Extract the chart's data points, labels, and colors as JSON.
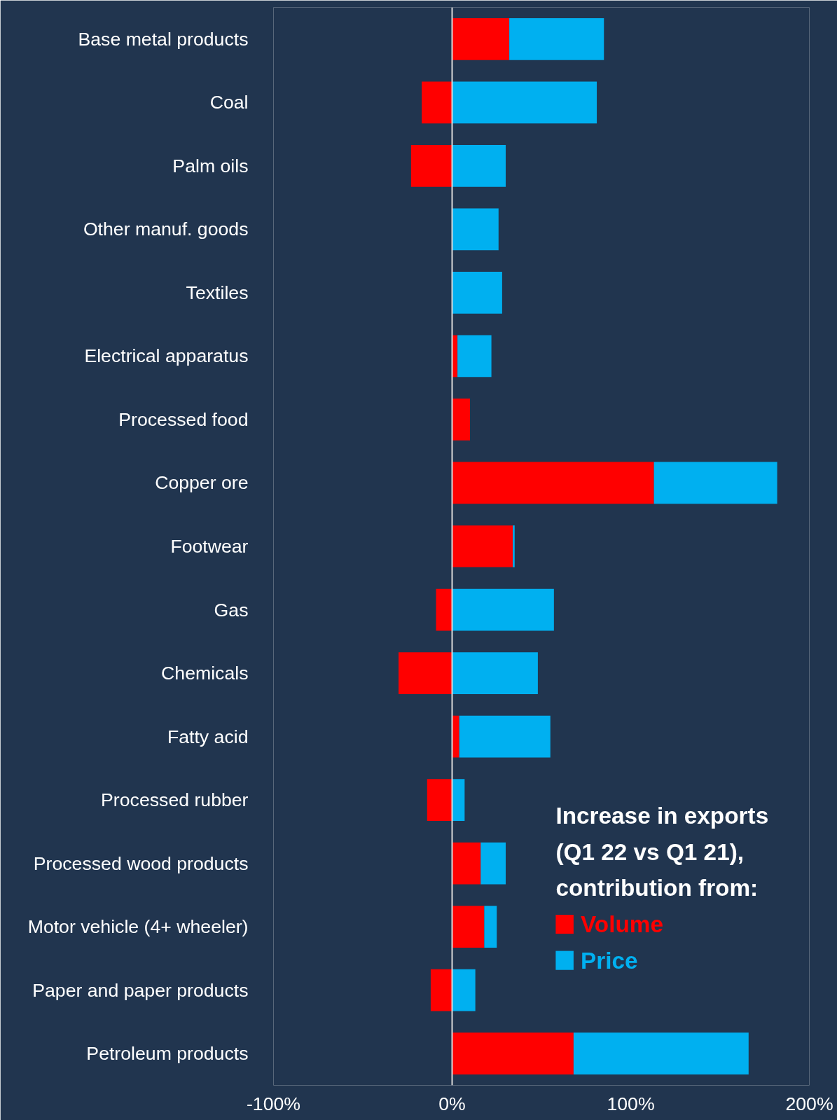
{
  "chart_data": {
    "type": "bar",
    "orientation": "horizontal",
    "stacked": true,
    "categories": [
      "Base metal products",
      "Coal",
      "Palm oils",
      "Other manuf. goods",
      "Textiles",
      "Electrical apparatus",
      "Processed food",
      "Copper ore",
      "Footwear",
      "Gas",
      "Chemicals",
      "Fatty acid",
      "Processed rubber",
      "Processed wood products",
      "Motor vehicle (4+ wheeler)",
      "Paper and paper products",
      "Petroleum products"
    ],
    "series": [
      {
        "name": "Volume",
        "color": "#ff0000",
        "values": [
          32,
          -17,
          -23,
          0,
          0,
          3,
          10,
          113,
          34,
          -9,
          -30,
          4,
          -14,
          16,
          18,
          -12,
          68
        ]
      },
      {
        "name": "Price",
        "color": "#00b0f0",
        "values": [
          53,
          81,
          30,
          26,
          28,
          19,
          0,
          69,
          1,
          57,
          48,
          51,
          7,
          14,
          7,
          13,
          98
        ]
      }
    ],
    "xlim": [
      -100,
      200
    ],
    "xticks": [
      {
        "value": -100,
        "label": "-100%"
      },
      {
        "value": 0,
        "label": "0%"
      },
      {
        "value": 100,
        "label": "100%"
      },
      {
        "value": 200,
        "label": "200%"
      }
    ],
    "legend_title": "Increase in exports (Q1 22 vs Q1 21), contribution from:",
    "legend": "bottom right",
    "grid": false,
    "ref_lines": [
      {
        "axis": "x",
        "value": 0,
        "color": "#d9d9d9"
      }
    ]
  }
}
